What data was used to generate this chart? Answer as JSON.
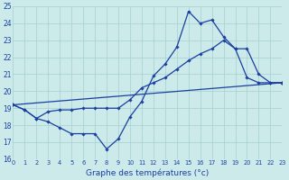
{
  "title": "Graphe des températures (°c)",
  "bg_color": "#cceaea",
  "grid_color": "#aad4d4",
  "line_color": "#1a3fa0",
  "ylim": [
    16,
    25
  ],
  "xlim": [
    0,
    23
  ],
  "yticks": [
    16,
    17,
    18,
    19,
    20,
    21,
    22,
    23,
    24,
    25
  ],
  "xticks": [
    0,
    1,
    2,
    3,
    4,
    5,
    6,
    7,
    8,
    9,
    10,
    11,
    12,
    13,
    14,
    15,
    16,
    17,
    18,
    19,
    20,
    21,
    22,
    23
  ],
  "line1_x": [
    0,
    1,
    2,
    3,
    4,
    5,
    6,
    7,
    8,
    9,
    10,
    11,
    12,
    13,
    14,
    15,
    16,
    17,
    18,
    19,
    20,
    21,
    22,
    23
  ],
  "line1_y": [
    19.2,
    18.9,
    18.4,
    18.2,
    17.85,
    17.5,
    17.5,
    17.5,
    16.6,
    17.2,
    18.5,
    19.4,
    20.9,
    21.6,
    22.6,
    24.7,
    24.0,
    24.2,
    23.2,
    22.5,
    20.8,
    20.5,
    20.5,
    20.5
  ],
  "line2_x": [
    0,
    23
  ],
  "line2_y": [
    19.2,
    20.5
  ],
  "line3_x": [
    0,
    1,
    2,
    3,
    4,
    5,
    6,
    7,
    8,
    9,
    10,
    11,
    12,
    13,
    14,
    15,
    16,
    17,
    18,
    19,
    20,
    21,
    22,
    23
  ],
  "line3_y": [
    19.2,
    18.9,
    18.4,
    18.8,
    18.9,
    18.9,
    19.0,
    19.0,
    19.0,
    19.0,
    19.5,
    20.2,
    20.5,
    20.8,
    21.3,
    21.8,
    22.2,
    22.5,
    23.0,
    22.5,
    22.5,
    21.0,
    20.5,
    20.5
  ]
}
